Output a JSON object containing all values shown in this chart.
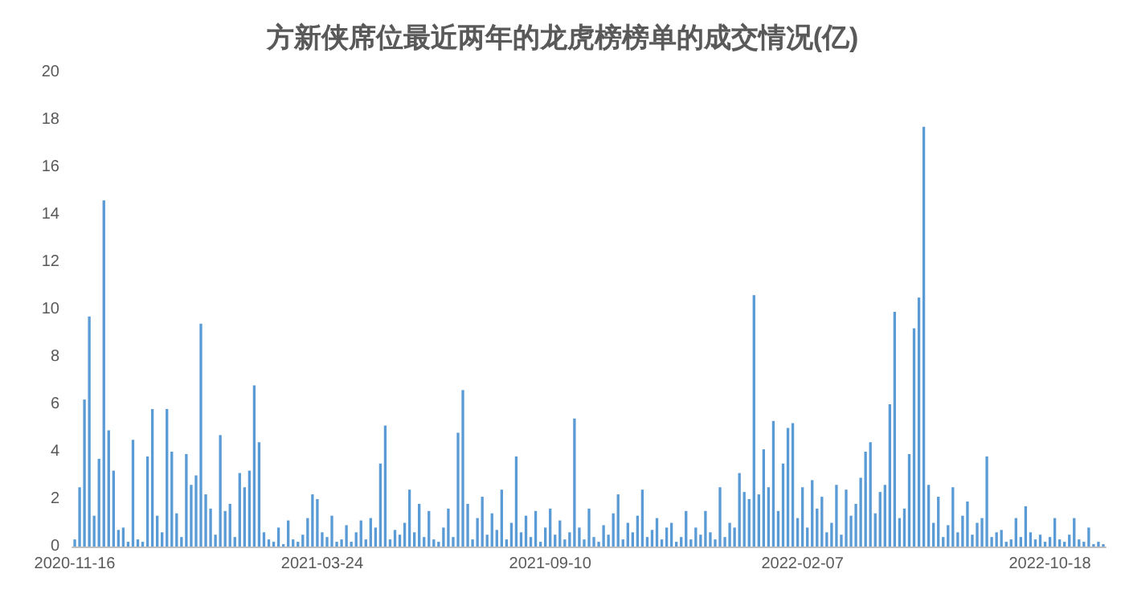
{
  "chart_data": {
    "type": "bar",
    "title": "方新侠席位最近两年的龙虎榜榜单的成交情况(亿)",
    "categories": [
      "2020-11-16",
      null,
      null,
      null,
      null,
      null,
      null,
      null,
      null,
      null,
      null,
      null,
      null,
      null,
      null,
      null,
      null,
      null,
      null,
      null,
      null,
      null,
      null,
      null,
      null,
      null,
      null,
      null,
      null,
      null,
      null,
      null,
      null,
      null,
      null,
      null,
      null,
      null,
      null,
      null,
      null,
      null,
      null,
      null,
      null,
      null,
      null,
      null,
      null,
      null,
      null,
      "2021-03-24",
      null,
      null,
      null,
      null,
      null,
      null,
      null,
      null,
      null,
      null,
      null,
      null,
      null,
      null,
      null,
      null,
      null,
      null,
      null,
      null,
      null,
      null,
      null,
      null,
      null,
      null,
      null,
      null,
      null,
      null,
      null,
      null,
      null,
      null,
      null,
      null,
      null,
      null,
      null,
      null,
      null,
      null,
      null,
      null,
      null,
      null,
      "2021-09-10",
      null,
      null,
      null,
      null,
      null,
      null,
      null,
      null,
      null,
      null,
      null,
      null,
      null,
      null,
      null,
      null,
      null,
      null,
      null,
      null,
      null,
      null,
      null,
      null,
      null,
      null,
      null,
      null,
      null,
      null,
      null,
      null,
      null,
      null,
      null,
      null,
      null,
      null,
      null,
      null,
      null,
      null,
      null,
      null,
      null,
      null,
      null,
      null,
      null,
      null,
      null,
      "2022-02-07",
      null,
      null,
      null,
      null,
      null,
      null,
      null,
      null,
      null,
      null,
      null,
      null,
      null,
      null,
      null,
      null,
      null,
      null,
      null,
      null,
      null,
      null,
      null,
      null,
      null,
      null,
      null,
      null,
      null,
      null,
      null,
      null,
      null,
      null,
      null,
      null,
      null,
      null,
      null,
      null,
      null,
      null,
      null,
      null,
      null,
      null,
      null,
      null,
      null,
      null,
      "2022-10-18",
      null,
      null,
      null,
      null,
      null,
      null,
      null,
      null,
      null,
      null,
      null
    ],
    "values": [
      0.3,
      2.5,
      6.2,
      9.7,
      1.3,
      3.7,
      14.6,
      4.9,
      3.2,
      0.7,
      0.8,
      0.2,
      4.5,
      0.3,
      0.2,
      3.8,
      5.8,
      1.3,
      0.6,
      5.8,
      4.0,
      1.4,
      0.4,
      3.9,
      2.6,
      3.0,
      9.4,
      2.2,
      1.6,
      0.5,
      4.7,
      1.5,
      1.8,
      0.4,
      3.1,
      2.5,
      3.2,
      6.8,
      4.4,
      0.6,
      0.3,
      0.2,
      0.8,
      0.1,
      1.1,
      0.3,
      0.2,
      0.5,
      1.2,
      2.2,
      2.0,
      0.6,
      0.4,
      1.3,
      0.2,
      0.3,
      0.9,
      0.2,
      0.6,
      1.1,
      0.3,
      1.2,
      0.8,
      3.5,
      5.1,
      0.3,
      0.7,
      0.5,
      1.0,
      2.4,
      0.6,
      1.8,
      0.4,
      1.5,
      0.3,
      0.2,
      0.8,
      1.6,
      0.4,
      4.8,
      6.6,
      1.8,
      0.3,
      1.2,
      2.1,
      0.5,
      1.4,
      0.7,
      2.4,
      0.3,
      1.0,
      3.8,
      0.6,
      1.3,
      0.4,
      1.5,
      0.2,
      0.8,
      1.6,
      0.5,
      1.1,
      0.3,
      0.6,
      5.4,
      0.8,
      0.3,
      1.6,
      0.4,
      0.2,
      0.9,
      0.5,
      1.4,
      2.2,
      0.3,
      1.0,
      0.6,
      1.3,
      2.4,
      0.4,
      0.7,
      1.2,
      0.3,
      0.8,
      1.0,
      0.2,
      0.4,
      1.5,
      0.3,
      0.8,
      0.5,
      1.5,
      0.6,
      0.3,
      2.5,
      0.4,
      1.0,
      0.8,
      3.1,
      2.3,
      2.0,
      10.6,
      2.2,
      4.1,
      2.5,
      5.3,
      1.5,
      3.5,
      5.0,
      5.2,
      1.2,
      2.5,
      0.8,
      2.8,
      1.6,
      2.1,
      0.6,
      1.0,
      2.6,
      0.5,
      2.4,
      1.3,
      1.8,
      2.9,
      4.0,
      4.4,
      1.4,
      2.3,
      2.6,
      6.0,
      9.9,
      1.2,
      1.6,
      3.9,
      9.2,
      10.5,
      17.7,
      2.6,
      1.0,
      2.1,
      0.4,
      0.9,
      2.5,
      0.6,
      1.3,
      1.9,
      0.5,
      1.0,
      1.2,
      3.8,
      0.4,
      0.6,
      0.7,
      0.2,
      0.3,
      1.2,
      0.4,
      1.7,
      0.6,
      0.3,
      0.5,
      0.2,
      0.4,
      1.2,
      0.3,
      0.2,
      0.5,
      1.2,
      0.3,
      0.2,
      0.8,
      0.1,
      0.2,
      0.1
    ],
    "color": "#5b9bd5",
    "ylim": [
      0,
      20
    ],
    "yticks": [
      0,
      2,
      4,
      6,
      8,
      10,
      12,
      14,
      16,
      18,
      20
    ]
  }
}
